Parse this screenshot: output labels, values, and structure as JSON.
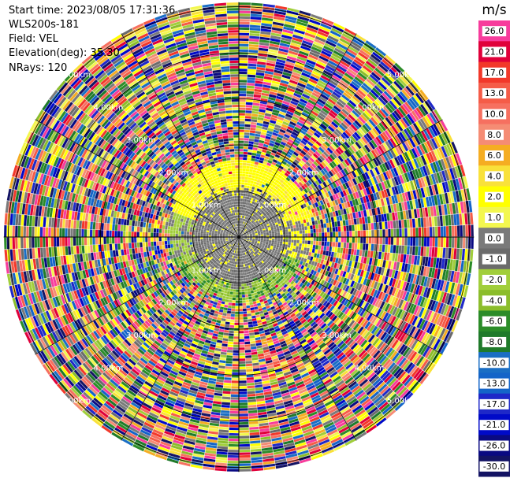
{
  "header": {
    "start_time": "Start time: 2023/08/05 17:31:36",
    "station": "WLS200s-181",
    "field": "Field: VEL",
    "elevation": "Elevation(deg): 35.30",
    "nrays": "NRays: 120"
  },
  "chart_data": {
    "type": "heatmap",
    "projection": "polar-ppi",
    "title": "",
    "field": "VEL",
    "n_rays": 120,
    "range_ring_labels": [
      "1.00km",
      "2.00km",
      "3.00km",
      "4.00km",
      "5.00km"
    ],
    "colorbar": {
      "unit": "m/s",
      "bins": [
        {
          "label": "26.0",
          "color": "#f73c9c"
        },
        {
          "label": "21.0",
          "color": "#e0003a"
        },
        {
          "label": "17.0",
          "color": "#f2382a"
        },
        {
          "label": "13.0",
          "color": "#f55c48"
        },
        {
          "label": "10.0",
          "color": "#f67060"
        },
        {
          "label": "8.0",
          "color": "#f58c74"
        },
        {
          "label": "6.0",
          "color": "#f5ad22"
        },
        {
          "label": "4.0",
          "color": "#f9e13a"
        },
        {
          "label": "2.0",
          "color": "#ffff00"
        },
        {
          "label": "1.0",
          "color": "#f3f74e"
        },
        {
          "label": "0.0",
          "color": "#7a7a7a"
        },
        {
          "label": "-1.0",
          "color": "#6b6b6b"
        },
        {
          "label": "-2.0",
          "color": "#a1ce3b"
        },
        {
          "label": "-4.0",
          "color": "#8bbd2b"
        },
        {
          "label": "-6.0",
          "color": "#2b8c28"
        },
        {
          "label": "-8.0",
          "color": "#1f7a2a"
        },
        {
          "label": "-10.0",
          "color": "#1a6ec4"
        },
        {
          "label": "-13.0",
          "color": "#1464c8"
        },
        {
          "label": "-17.0",
          "color": "#1e28c8"
        },
        {
          "label": "-21.0",
          "color": "#000ac8"
        },
        {
          "label": "-26.0",
          "color": "#0a0a82"
        },
        {
          "label": "-30.0",
          "color": "#141464"
        }
      ]
    },
    "velocity_regions": [
      {
        "range_km": [
          0,
          1.0
        ],
        "description": "near zero",
        "value_ms": 0.0
      },
      {
        "range_km": [
          1.0,
          1.6
        ],
        "sector": "north",
        "value_ms": 2.0
      },
      {
        "range_km": [
          1.0,
          1.6
        ],
        "sector": "south",
        "value_ms": -4.0
      },
      {
        "range_km": [
          1.6,
          5.5
        ],
        "description": "noise",
        "value_ms": null
      }
    ]
  }
}
